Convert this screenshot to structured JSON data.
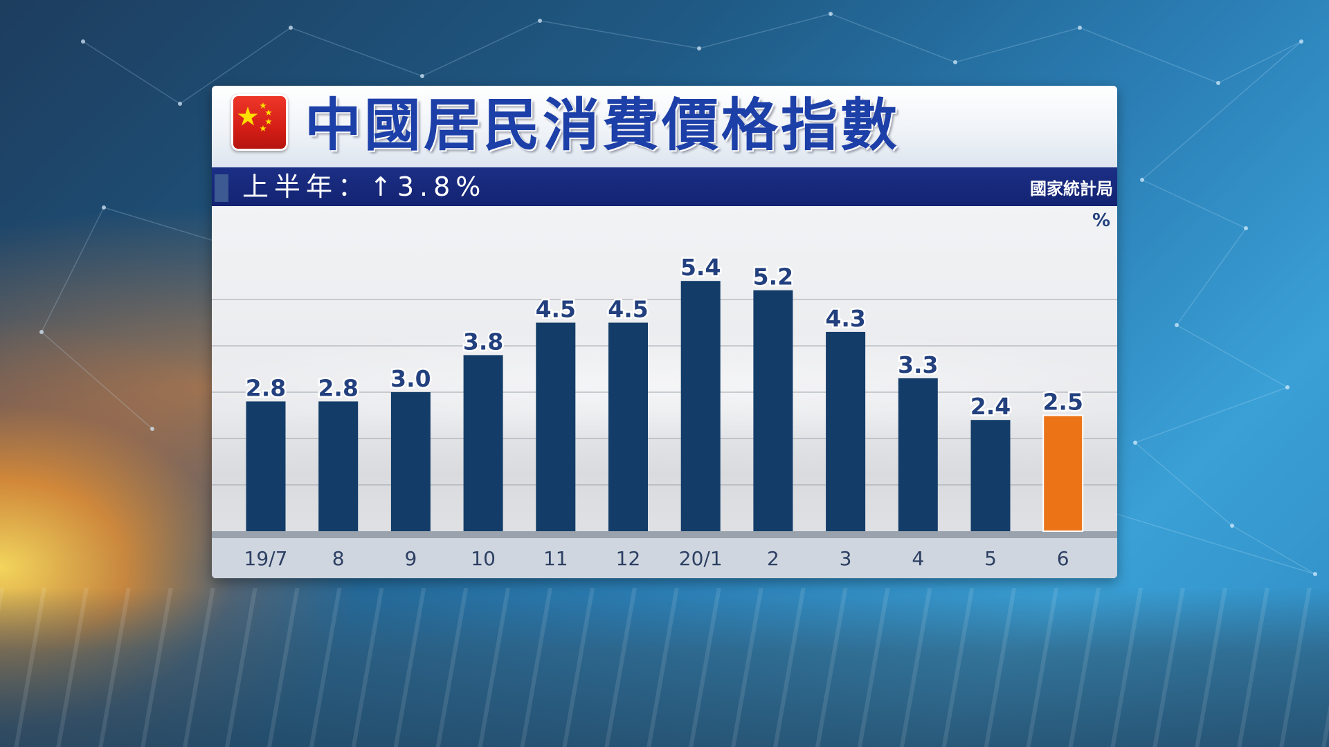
{
  "title": "中國居民消費價格指數",
  "subtitle": "上半年：↑3.8%",
  "source": "國家統計局",
  "unit": "%",
  "colors": {
    "bar": "#133c68",
    "highlight": "#ec7417",
    "label": "#23407e"
  },
  "chart_data": {
    "type": "bar",
    "categories": [
      "19/7",
      "8",
      "9",
      "10",
      "11",
      "12",
      "20/1",
      "2",
      "3",
      "4",
      "5",
      "6"
    ],
    "values": [
      2.8,
      2.8,
      3.0,
      3.8,
      4.5,
      4.5,
      5.4,
      5.2,
      4.3,
      3.3,
      2.4,
      2.5
    ],
    "labels": [
      "2.8",
      "2.8",
      "3.0",
      "3.8",
      "4.5",
      "4.5",
      "5.4",
      "5.2",
      "4.3",
      "3.3",
      "2.4",
      "2.5"
    ],
    "highlight_index": 11,
    "ylabel": "%",
    "ylim": [
      0,
      6
    ],
    "grid": true,
    "legend": "none"
  }
}
